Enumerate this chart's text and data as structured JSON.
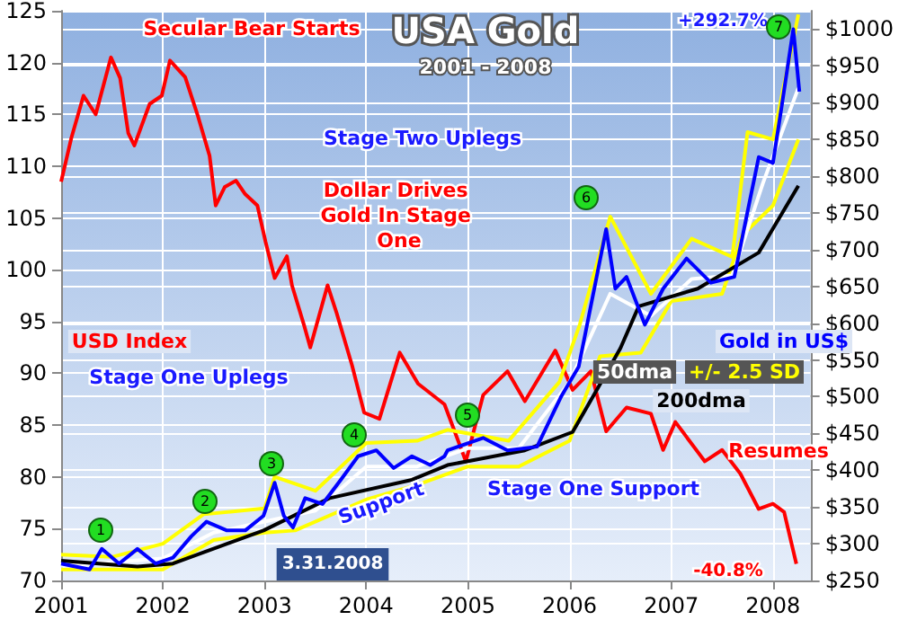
{
  "chart_data": {
    "type": "line",
    "title": "USA Gold",
    "subtitle": "2001 - 2008",
    "xlim": [
      2001,
      2008.37
    ],
    "xticks": [
      2001,
      2002,
      2003,
      2004,
      2005,
      2006,
      2007,
      2008
    ],
    "ylim": [
      70,
      125
    ],
    "yticks": [
      70,
      75,
      80,
      85,
      90,
      95,
      100,
      105,
      110,
      115,
      120,
      125
    ],
    "y2lim": [
      250,
      1025
    ],
    "y2ticks": [
      {
        "value": 250,
        "label": "$250"
      },
      {
        "value": 300,
        "label": "$300"
      },
      {
        "value": 350,
        "label": "$350"
      },
      {
        "value": 400,
        "label": "$400"
      },
      {
        "value": 450,
        "label": "$450"
      },
      {
        "value": 500,
        "label": "$500"
      },
      {
        "value": 550,
        "label": "$550"
      },
      {
        "value": 600,
        "label": "$600"
      },
      {
        "value": 650,
        "label": "$650"
      },
      {
        "value": 700,
        "label": "$700"
      },
      {
        "value": 750,
        "label": "$750"
      },
      {
        "value": 800,
        "label": "$800"
      },
      {
        "value": 850,
        "label": "$850"
      },
      {
        "value": 900,
        "label": "$900"
      },
      {
        "value": 950,
        "label": "$950"
      },
      {
        "value": 1000,
        "label": "$1000"
      }
    ],
    "grid": true,
    "marker": "none",
    "line_style": "solid",
    "series": [
      {
        "name": "USD Index",
        "color": "#ff0000",
        "x": [
          2001.0,
          2001.1,
          2001.22,
          2001.34,
          2001.49,
          2001.58,
          2001.66,
          2001.72,
          2001.87,
          2001.99,
          2002.07,
          2002.22,
          2002.34,
          2002.46,
          2002.52,
          2002.61,
          2002.72,
          2002.81,
          2002.93,
          2003.01,
          2003.1,
          2003.22,
          2003.27,
          2003.39,
          2003.45,
          2003.62,
          2003.71,
          2003.86,
          2003.98,
          2004.13,
          2004.33,
          2004.51,
          2004.77,
          2004.98,
          2005.15,
          2005.39,
          2005.56,
          2005.86,
          2006.03,
          2006.21,
          2006.36,
          2006.56,
          2006.8,
          2006.92,
          2007.04,
          2007.33,
          2007.5,
          2007.68,
          2007.86,
          2008.0,
          2008.11,
          2008.23
        ],
        "values": [
          108.5,
          112.7,
          116.8,
          115,
          120.5,
          118.5,
          113.2,
          112,
          116,
          116.8,
          120.2,
          118.6,
          115,
          111,
          106.2,
          108,
          108.6,
          107.3,
          106.2,
          102.7,
          99.2,
          101.3,
          98.5,
          94.6,
          92.5,
          98.5,
          95.8,
          90.8,
          86.2,
          85.6,
          92,
          89,
          87,
          81.5,
          87.9,
          90.2,
          87.3,
          92.2,
          88.4,
          90.2,
          84.4,
          86.7,
          86.1,
          82.6,
          85.3,
          81.5,
          82.6,
          80.3,
          76.9,
          77.4,
          76.6,
          71.6
        ]
      },
      {
        "name": "+/- 2.5 SD",
        "color": "#ffff00",
        "axis": "y2",
        "x": [
          2001.0,
          2001.5,
          2002.0,
          2002.4,
          2003.0,
          2003.1,
          2003.5,
          2004.0,
          2004.5,
          2004.8,
          2005.4,
          2005.9,
          2006.1,
          2006.4,
          2006.8,
          2007.2,
          2007.6,
          2007.75,
          2008.0,
          2008.25
        ],
        "values": [
          285,
          282,
          300,
          340,
          348,
          391,
          372,
          437,
          440,
          455,
          440,
          520,
          598,
          745,
          640,
          715,
          690,
          860,
          850,
          1020
        ]
      },
      {
        "color": "#ffff00",
        "axis": "y2",
        "x": [
          2001.0,
          2002.0,
          2002.5,
          2003.0,
          2003.3,
          2004.0,
          2004.5,
          2005.0,
          2005.5,
          2006.0,
          2006.3,
          2006.7,
          2007.0,
          2007.5,
          2007.7,
          2008.0,
          2008.25
        ],
        "values": [
          265,
          265,
          305,
          315,
          318,
          360,
          380,
          405,
          405,
          440,
          555,
          560,
          630,
          640,
          720,
          760,
          850
        ]
      },
      {
        "name": "50dma",
        "color": "#ffffff",
        "axis": "y2",
        "x": [
          2001.0,
          2002.0,
          2002.5,
          2003.0,
          2003.5,
          2004.0,
          2004.5,
          2005.0,
          2005.5,
          2006.0,
          2006.4,
          2006.8,
          2007.2,
          2007.6,
          2007.9,
          2008.25
        ],
        "values": [
          270,
          280,
          315,
          330,
          345,
          405,
          405,
          430,
          430,
          520,
          640,
          610,
          660,
          665,
          790,
          920
        ]
      },
      {
        "name": "200dma",
        "color": "#000000",
        "axis": "y2",
        "x": [
          2001.0,
          2001.75,
          2002.1,
          2002.99,
          2003.64,
          2004.45,
          2004.8,
          2005.56,
          2006.03,
          2006.3,
          2006.5,
          2006.68,
          2007.26,
          2007.86,
          2008.25
        ],
        "values": [
          277,
          269,
          273,
          318,
          362,
          387,
          407,
          427,
          452,
          517,
          566,
          623,
          647,
          696,
          787
        ]
      },
      {
        "name": "Gold in US$",
        "color": "#0000ff",
        "axis": "y2",
        "x": [
          2001.0,
          2001.28,
          2001.4,
          2001.57,
          2001.75,
          2001.93,
          2002.1,
          2002.28,
          2002.43,
          2002.63,
          2002.81,
          2002.99,
          2003.1,
          2003.19,
          2003.28,
          2003.4,
          2003.57,
          2003.75,
          2003.92,
          2004.1,
          2004.27,
          2004.45,
          2004.63,
          2004.77,
          2004.8,
          2005.15,
          2005.39,
          2005.68,
          2005.92,
          2006.09,
          2006.36,
          2006.45,
          2006.56,
          2006.74,
          2006.92,
          2007.15,
          2007.39,
          2007.62,
          2007.74,
          2007.86,
          2008.0,
          2008.09,
          2008.2,
          2008.26
        ],
        "values": [
          273,
          265,
          293,
          273,
          293,
          273,
          281,
          310,
          330,
          318,
          318,
          338,
          383,
          338,
          322,
          362,
          354,
          387,
          419,
          427,
          403,
          419,
          407,
          419,
          427,
          444,
          427,
          432,
          501,
          541,
          728,
          647,
          663,
          598,
          647,
          688,
          655,
          663,
          745,
          826,
          818,
          899,
          1000,
          915
        ]
      }
    ],
    "annotations": [
      "Secular Bear Starts",
      "Dollar Drives Gold In Stage One",
      "Stage One Uplegs",
      "Stage Two Uplegs",
      "Stage One Support",
      "Support",
      "Resumes",
      "+292.7%",
      "-40.8%",
      "3.31.2008",
      "1",
      "2",
      "3",
      "4",
      "5",
      "6",
      "7"
    ]
  }
}
